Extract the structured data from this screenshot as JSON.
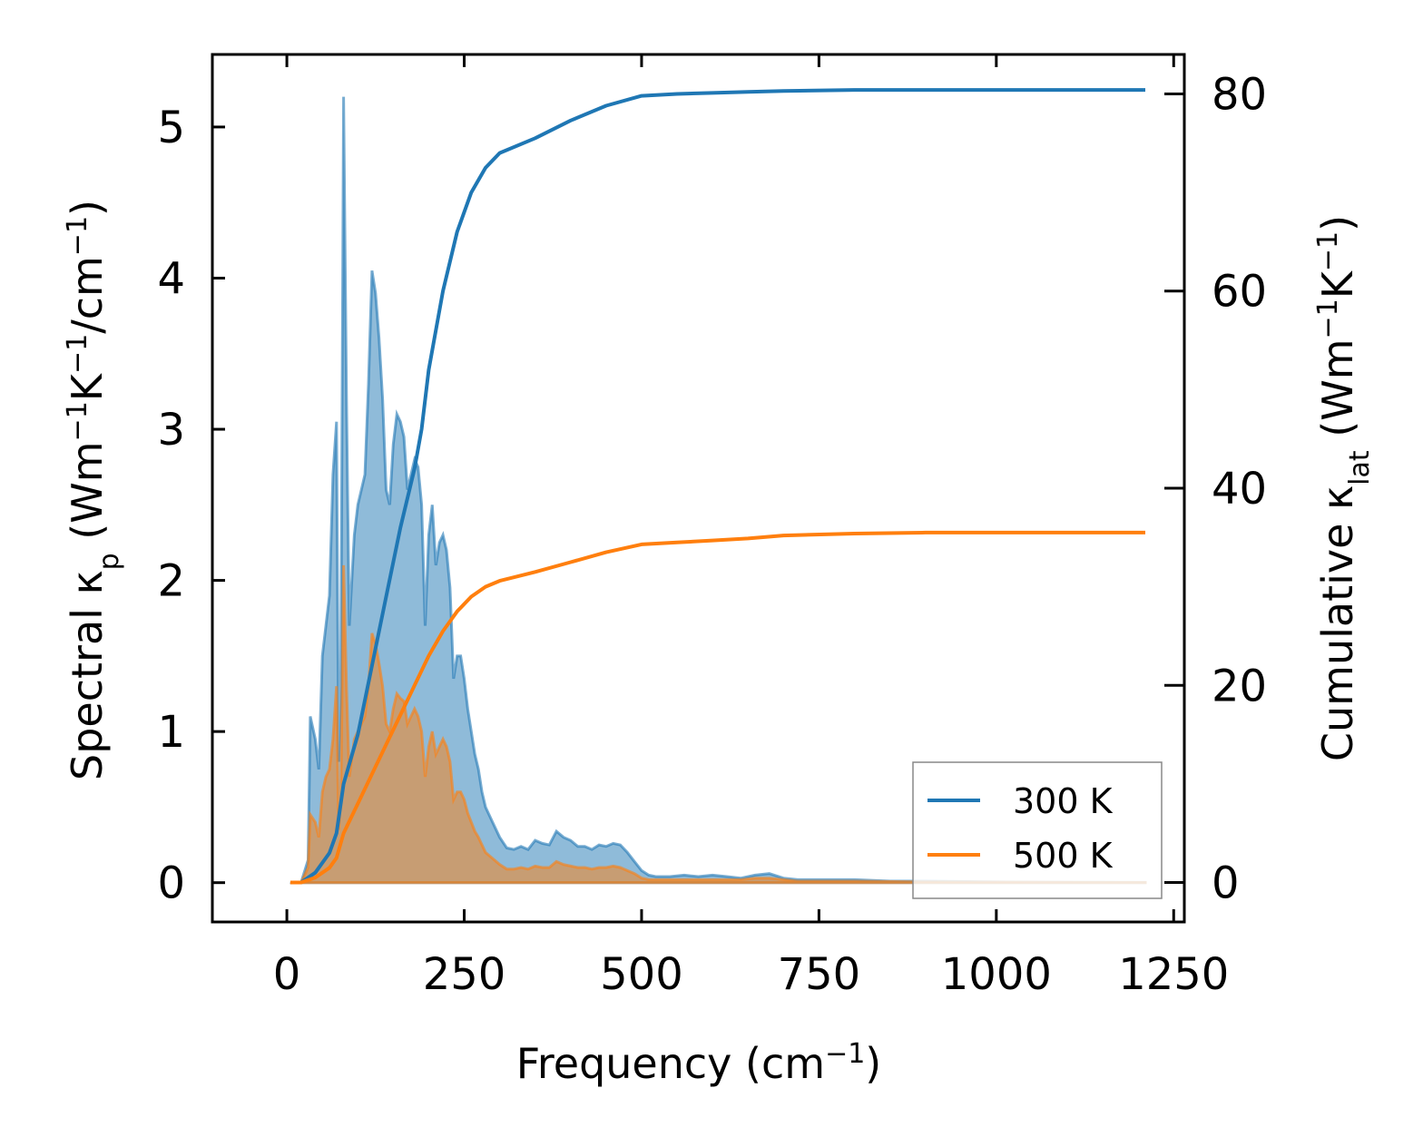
{
  "chart_data": {
    "type": "line",
    "xlabel": {
      "main": "Frequency (cm",
      "sup": "−1",
      "end": ")"
    },
    "ylabel_left": {
      "p1": "Spectral κ",
      "sub": "p",
      "p2": " (Wm",
      "sup1": "−1",
      "p3": "K",
      "sup2": "−1",
      "p4": "/cm",
      "sup3": "−1",
      "p5": ")"
    },
    "ylabel_right": {
      "p1": "Cumulative κ",
      "sub": "lat",
      "p2": " (Wm",
      "sup1": "−1",
      "p3": "K",
      "sup2": "−1",
      "p4": ")"
    },
    "xlim": [
      -105,
      1265
    ],
    "ylim_left": [
      -0.26,
      5.48
    ],
    "ylim_right": [
      -4,
      84
    ],
    "x_ticks": [
      0,
      250,
      500,
      750,
      1000,
      1250
    ],
    "x_tick_labels": [
      "0",
      "250",
      "500",
      "750",
      "1000",
      "1250"
    ],
    "y_left_ticks": [
      0,
      1,
      2,
      3,
      4,
      5
    ],
    "y_left_tick_labels": [
      "0",
      "1",
      "2",
      "3",
      "4",
      "5"
    ],
    "y_right_ticks": [
      0,
      20,
      40,
      60,
      80
    ],
    "y_right_tick_labels": [
      "0",
      "20",
      "40",
      "60",
      "80"
    ],
    "colors": {
      "s300": "#1f77b4",
      "s500": "#ff7f0e",
      "fill300": "#1f77b4",
      "fill500": "#ff7f0e"
    },
    "legend": {
      "position": "lower-right",
      "entries": [
        "300 K",
        "500 K"
      ]
    },
    "series": [
      {
        "name": "300 K",
        "spectral": [
          [
            5,
            0
          ],
          [
            20,
            0
          ],
          [
            30,
            0.15
          ],
          [
            33,
            1.1
          ],
          [
            40,
            0.95
          ],
          [
            45,
            0.75
          ],
          [
            50,
            1.5
          ],
          [
            55,
            1.7
          ],
          [
            60,
            1.9
          ],
          [
            65,
            2.7
          ],
          [
            70,
            3.05
          ],
          [
            73,
            0.8
          ],
          [
            76,
            1.3
          ],
          [
            80,
            5.2
          ],
          [
            84,
            3.2
          ],
          [
            88,
            1.7
          ],
          [
            95,
            2.3
          ],
          [
            100,
            2.5
          ],
          [
            105,
            2.6
          ],
          [
            110,
            2.7
          ],
          [
            115,
            3.3
          ],
          [
            120,
            4.05
          ],
          [
            125,
            3.9
          ],
          [
            130,
            3.6
          ],
          [
            135,
            3.2
          ],
          [
            140,
            2.6
          ],
          [
            145,
            2.5
          ],
          [
            150,
            2.9
          ],
          [
            155,
            3.1
          ],
          [
            160,
            3.05
          ],
          [
            165,
            2.95
          ],
          [
            170,
            2.6
          ],
          [
            175,
            2.7
          ],
          [
            180,
            2.8
          ],
          [
            185,
            2.75
          ],
          [
            190,
            2.5
          ],
          [
            195,
            1.7
          ],
          [
            200,
            2.3
          ],
          [
            205,
            2.5
          ],
          [
            210,
            2.1
          ],
          [
            215,
            2.25
          ],
          [
            220,
            2.3
          ],
          [
            225,
            2.2
          ],
          [
            230,
            1.95
          ],
          [
            235,
            1.35
          ],
          [
            240,
            1.5
          ],
          [
            245,
            1.5
          ],
          [
            250,
            1.35
          ],
          [
            255,
            1.15
          ],
          [
            260,
            1.0
          ],
          [
            265,
            0.85
          ],
          [
            270,
            0.75
          ],
          [
            275,
            0.6
          ],
          [
            280,
            0.5
          ],
          [
            290,
            0.4
          ],
          [
            300,
            0.3
          ],
          [
            310,
            0.23
          ],
          [
            320,
            0.22
          ],
          [
            330,
            0.24
          ],
          [
            340,
            0.22
          ],
          [
            350,
            0.28
          ],
          [
            360,
            0.26
          ],
          [
            370,
            0.25
          ],
          [
            380,
            0.34
          ],
          [
            390,
            0.3
          ],
          [
            400,
            0.28
          ],
          [
            410,
            0.24
          ],
          [
            420,
            0.24
          ],
          [
            430,
            0.22
          ],
          [
            440,
            0.25
          ],
          [
            450,
            0.24
          ],
          [
            460,
            0.26
          ],
          [
            470,
            0.25
          ],
          [
            480,
            0.2
          ],
          [
            490,
            0.14
          ],
          [
            500,
            0.08
          ],
          [
            510,
            0.05
          ],
          [
            520,
            0.04
          ],
          [
            540,
            0.04
          ],
          [
            560,
            0.05
          ],
          [
            580,
            0.04
          ],
          [
            600,
            0.05
          ],
          [
            620,
            0.04
          ],
          [
            640,
            0.03
          ],
          [
            660,
            0.05
          ],
          [
            680,
            0.06
          ],
          [
            700,
            0.03
          ],
          [
            720,
            0.02
          ],
          [
            760,
            0.02
          ],
          [
            800,
            0.02
          ],
          [
            850,
            0.01
          ],
          [
            900,
            0.01
          ],
          [
            1000,
            0.005
          ],
          [
            1100,
            0.003
          ],
          [
            1210,
            0.002
          ]
        ],
        "cumulative": [
          [
            5,
            0
          ],
          [
            20,
            0
          ],
          [
            40,
            1
          ],
          [
            60,
            3
          ],
          [
            70,
            5
          ],
          [
            80,
            10
          ],
          [
            100,
            15
          ],
          [
            120,
            22
          ],
          [
            140,
            29
          ],
          [
            160,
            36
          ],
          [
            180,
            42
          ],
          [
            190,
            46
          ],
          [
            200,
            52
          ],
          [
            220,
            60
          ],
          [
            240,
            66
          ],
          [
            260,
            70
          ],
          [
            280,
            72.5
          ],
          [
            300,
            74
          ],
          [
            350,
            75.5
          ],
          [
            400,
            77.3
          ],
          [
            450,
            78.8
          ],
          [
            500,
            79.8
          ],
          [
            550,
            80
          ],
          [
            600,
            80.1
          ],
          [
            650,
            80.2
          ],
          [
            700,
            80.3
          ],
          [
            800,
            80.4
          ],
          [
            1000,
            80.4
          ],
          [
            1210,
            80.4
          ]
        ]
      },
      {
        "name": "500 K",
        "spectral": [
          [
            5,
            0
          ],
          [
            20,
            0
          ],
          [
            30,
            0.1
          ],
          [
            33,
            0.45
          ],
          [
            40,
            0.4
          ],
          [
            45,
            0.3
          ],
          [
            50,
            0.6
          ],
          [
            55,
            0.7
          ],
          [
            60,
            0.75
          ],
          [
            65,
            0.95
          ],
          [
            70,
            1.3
          ],
          [
            73,
            0.35
          ],
          [
            76,
            0.55
          ],
          [
            80,
            2.1
          ],
          [
            84,
            1.3
          ],
          [
            88,
            0.7
          ],
          [
            95,
            0.95
          ],
          [
            100,
            1.0
          ],
          [
            105,
            1.05
          ],
          [
            110,
            1.1
          ],
          [
            115,
            1.3
          ],
          [
            120,
            1.65
          ],
          [
            125,
            1.58
          ],
          [
            130,
            1.45
          ],
          [
            135,
            1.3
          ],
          [
            140,
            1.05
          ],
          [
            145,
            1.0
          ],
          [
            150,
            1.15
          ],
          [
            155,
            1.25
          ],
          [
            160,
            1.22
          ],
          [
            165,
            1.2
          ],
          [
            170,
            1.05
          ],
          [
            175,
            1.1
          ],
          [
            180,
            1.15
          ],
          [
            185,
            1.1
          ],
          [
            190,
            1.0
          ],
          [
            195,
            0.7
          ],
          [
            200,
            0.9
          ],
          [
            205,
            1.0
          ],
          [
            210,
            0.85
          ],
          [
            215,
            0.9
          ],
          [
            220,
            0.95
          ],
          [
            225,
            0.9
          ],
          [
            230,
            0.8
          ],
          [
            235,
            0.55
          ],
          [
            240,
            0.6
          ],
          [
            245,
            0.6
          ],
          [
            250,
            0.55
          ],
          [
            255,
            0.46
          ],
          [
            260,
            0.4
          ],
          [
            265,
            0.34
          ],
          [
            270,
            0.3
          ],
          [
            275,
            0.25
          ],
          [
            280,
            0.2
          ],
          [
            290,
            0.16
          ],
          [
            300,
            0.12
          ],
          [
            310,
            0.09
          ],
          [
            320,
            0.09
          ],
          [
            330,
            0.1
          ],
          [
            340,
            0.09
          ],
          [
            350,
            0.11
          ],
          [
            360,
            0.1
          ],
          [
            370,
            0.1
          ],
          [
            380,
            0.14
          ],
          [
            390,
            0.12
          ],
          [
            400,
            0.11
          ],
          [
            410,
            0.1
          ],
          [
            420,
            0.1
          ],
          [
            430,
            0.09
          ],
          [
            440,
            0.1
          ],
          [
            450,
            0.1
          ],
          [
            460,
            0.11
          ],
          [
            470,
            0.1
          ],
          [
            480,
            0.08
          ],
          [
            490,
            0.06
          ],
          [
            500,
            0.03
          ],
          [
            510,
            0.02
          ],
          [
            520,
            0.02
          ],
          [
            540,
            0.02
          ],
          [
            560,
            0.02
          ],
          [
            580,
            0.02
          ],
          [
            600,
            0.02
          ],
          [
            620,
            0.02
          ],
          [
            640,
            0.02
          ],
          [
            660,
            0.03
          ],
          [
            680,
            0.03
          ],
          [
            700,
            0.02
          ],
          [
            720,
            0.01
          ],
          [
            800,
            0.01
          ],
          [
            900,
            0.005
          ],
          [
            1210,
            0.001
          ]
        ],
        "cumulative": [
          [
            5,
            0
          ],
          [
            20,
            0
          ],
          [
            40,
            0.5
          ],
          [
            60,
            1.5
          ],
          [
            70,
            2.5
          ],
          [
            80,
            5
          ],
          [
            100,
            8
          ],
          [
            120,
            11
          ],
          [
            140,
            14
          ],
          [
            160,
            17
          ],
          [
            180,
            20
          ],
          [
            200,
            23
          ],
          [
            220,
            25.5
          ],
          [
            240,
            27.5
          ],
          [
            260,
            29
          ],
          [
            280,
            30
          ],
          [
            300,
            30.6
          ],
          [
            350,
            31.5
          ],
          [
            400,
            32.5
          ],
          [
            450,
            33.5
          ],
          [
            500,
            34.3
          ],
          [
            550,
            34.5
          ],
          [
            600,
            34.7
          ],
          [
            650,
            34.9
          ],
          [
            700,
            35.2
          ],
          [
            800,
            35.4
          ],
          [
            900,
            35.5
          ],
          [
            1000,
            35.5
          ],
          [
            1210,
            35.5
          ]
        ]
      }
    ]
  }
}
